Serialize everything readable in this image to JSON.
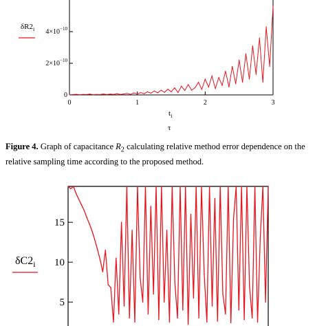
{
  "chart_data": [
    {
      "type": "line",
      "ylabel": "δR2",
      "ylabel_sub": "i",
      "xlabel": "t",
      "xlabel_sub": "i",
      "xlabel2": "τ",
      "xlim": [
        0,
        3
      ],
      "ylim": [
        0,
        6e-10
      ],
      "x_ticks": [
        {
          "v": 0,
          "label": "0"
        },
        {
          "v": 1,
          "label": "1"
        },
        {
          "v": 2,
          "label": "2"
        },
        {
          "v": 3,
          "label": "3"
        }
      ],
      "y_ticks": [
        {
          "v": 0,
          "label": "0",
          "exp": ""
        },
        {
          "v": 2e-10,
          "label": "2×10",
          "exp": "−10"
        },
        {
          "v": 4e-10,
          "label": "4×10",
          "exp": "−10"
        }
      ],
      "grid": false,
      "color": "#e8141d",
      "series": [
        {
          "x": [
            0,
            0.05,
            0.1,
            0.15,
            0.2,
            0.25,
            0.3,
            0.35,
            0.4,
            0.45,
            0.5,
            0.55,
            0.6,
            0.65,
            0.7,
            0.75,
            0.8,
            0.85,
            0.9,
            0.95,
            1.0,
            1.05,
            1.1,
            1.15,
            1.2,
            1.25,
            1.3,
            1.35,
            1.4,
            1.45,
            1.5,
            1.55,
            1.6,
            1.65,
            1.7,
            1.75,
            1.8,
            1.85,
            1.9,
            1.95,
            2.0,
            2.05,
            2.1,
            2.15,
            2.2,
            2.25,
            2.3,
            2.35,
            2.4,
            2.45,
            2.5,
            2.55,
            2.6,
            2.65,
            2.7,
            2.75,
            2.8,
            2.85,
            2.9,
            2.95,
            3.0
          ],
          "y": [
            1e-12,
            2e-12,
            4e-12,
            1e-12,
            3e-12,
            2e-12,
            5e-12,
            1e-12,
            3e-12,
            2e-12,
            6e-12,
            2e-12,
            5e-12,
            3e-12,
            8e-12,
            3e-12,
            6e-12,
            9e-12,
            4e-12,
            1.2e-11,
            6e-12,
            1.5e-11,
            8e-12,
            2e-11,
            1.1e-11,
            2.5e-11,
            1.3e-11,
            3e-11,
            1.6e-11,
            3.6e-11,
            2e-11,
            4.5e-11,
            1.5e-11,
            5.5e-11,
            2.8e-11,
            6.5e-11,
            3e-11,
            4.5e-11,
            8e-11,
            3.5e-11,
            1e-10,
            5e-11,
            1.2e-10,
            4e-11,
            1.1e-10,
            6e-11,
            1.5e-10,
            5e-11,
            1.8e-10,
            7e-11,
            2.2e-10,
            8e-11,
            2.6e-10,
            1e-10,
            3.1e-10,
            1.3e-10,
            3.6e-10,
            8e-11,
            4.3e-10,
            1.8e-10,
            5.6e-10
          ]
        }
      ]
    },
    {
      "type": "line",
      "ylabel": "δC2",
      "ylabel_sub": "i",
      "ylim": [
        2,
        19.5
      ],
      "y_ticks": [
        {
          "v": 5,
          "label": "5"
        },
        {
          "v": 10,
          "label": "10"
        },
        {
          "v": 15,
          "label": "15"
        }
      ],
      "xlim": [
        0,
        3
      ],
      "grid": false,
      "color": "#e8141d",
      "series": [
        {
          "x": [
            0,
            0.04,
            0.08,
            0.12,
            0.16,
            0.2,
            0.24,
            0.28,
            0.32,
            0.36,
            0.4,
            0.44,
            0.48,
            0.52,
            0.56,
            0.6,
            0.64,
            0.68,
            0.72,
            0.76,
            0.8,
            0.84,
            0.88,
            0.92,
            0.96,
            1.0,
            1.04,
            1.08,
            1.12,
            1.16,
            1.2,
            1.24,
            1.28,
            1.32,
            1.36,
            1.4,
            1.44,
            1.48,
            1.52,
            1.56,
            1.6,
            1.64,
            1.68,
            1.72,
            1.76,
            1.8,
            1.84,
            1.88,
            1.92,
            1.96,
            2.0,
            2.04,
            2.08,
            2.12,
            2.16,
            2.2,
            2.24,
            2.28,
            2.32,
            2.36,
            2.4,
            2.44,
            2.48,
            2.52,
            2.56,
            2.6,
            2.64,
            2.68,
            2.72,
            2.76,
            2.8,
            2.84,
            2.88,
            2.92,
            2.96,
            3.0
          ],
          "y": [
            19.5,
            19.2,
            19.5,
            18.6,
            17.9,
            17.2,
            16.5,
            15.6,
            14.8,
            13.9,
            12.8,
            11.6,
            10.3,
            8.8,
            11.5,
            7.2,
            6.8,
            2.5,
            10.5,
            3.5,
            15.0,
            4.5,
            19.5,
            3.0,
            14.0,
            2.5,
            19.5,
            8.0,
            5.0,
            19.5,
            3.5,
            17.0,
            6.0,
            19.5,
            2.8,
            19.5,
            5.0,
            14.0,
            2.5,
            19.5,
            7.5,
            3.0,
            19.5,
            4.0,
            19.5,
            2.2,
            16.0,
            5.5,
            19.5,
            3.0,
            19.5,
            8.5,
            2.5,
            19.5,
            4.5,
            18.0,
            2.6,
            19.5,
            6.0,
            3.5,
            19.5,
            2.4,
            15.5,
            19.5,
            4.0,
            19.5,
            2.8,
            19.5,
            7.0,
            3.0,
            19.5,
            2.5,
            13.0,
            19.5,
            5.0,
            19.5
          ]
        }
      ]
    }
  ],
  "caption": {
    "fig_no": "Figure 4.",
    "text_before": " Graph of capacitance ",
    "var": "R",
    "var_sub": "2",
    "text_after": " calculating relative method error dependence on the relative sampling time according to the proposed method."
  }
}
